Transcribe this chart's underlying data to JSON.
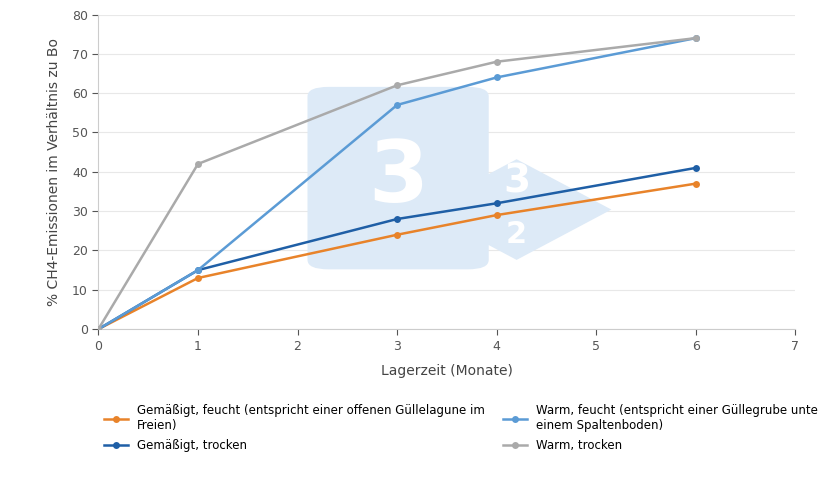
{
  "x_values": [
    0,
    1,
    3,
    4,
    6
  ],
  "series": [
    {
      "label": "Gemäßigt, feucht (entspricht einer offenen Güllelagune im\nFreien)",
      "color": "#E8832A",
      "values": [
        0,
        13,
        24,
        29,
        37
      ],
      "marker": "o",
      "zorder": 4
    },
    {
      "label": "Gemäßigt, trocken",
      "color": "#1F5FA6",
      "values": [
        0,
        15,
        28,
        32,
        41
      ],
      "marker": "o",
      "zorder": 4
    },
    {
      "label": "Warm, feucht (entspricht einer Güllegrube unter\neinem Spaltenboden)",
      "color": "#5B9BD5",
      "values": [
        0,
        15,
        57,
        64,
        74
      ],
      "marker": "o",
      "zorder": 4
    },
    {
      "label": "Warm, trocken",
      "color": "#AAAAAA",
      "values": [
        0,
        42,
        62,
        68,
        74
      ],
      "marker": "o",
      "zorder": 4
    }
  ],
  "xlabel": "Lagerzeit (Monate)",
  "ylabel": "% CH4-Emissionen im Verhältnis zu Bo",
  "xlim": [
    0,
    7
  ],
  "ylim": [
    0,
    80
  ],
  "xticks": [
    0,
    1,
    2,
    3,
    4,
    5,
    6,
    7
  ],
  "yticks": [
    0,
    10,
    20,
    30,
    40,
    50,
    60,
    70,
    80
  ],
  "background_color": "#ffffff",
  "watermark_color": "#ddeaf7",
  "watermark_text_color": "#ffffff",
  "legend_cols": 2,
  "figsize": [
    8.2,
    4.84
  ],
  "dpi": 100
}
